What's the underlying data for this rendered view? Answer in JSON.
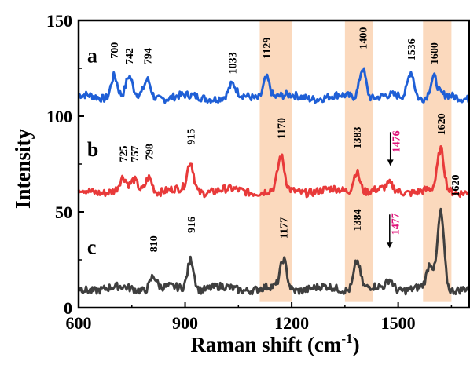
{
  "chart_data": {
    "type": "line",
    "xlabel": "Raman shift (cm",
    "xlabel_sup": "-1",
    "xlabel_close": ")",
    "ylabel": "Intensity",
    "xlim": [
      600,
      1700
    ],
    "ylim": [
      0,
      150
    ],
    "x_ticks": [
      600,
      900,
      1200,
      1500
    ],
    "y_ticks": [
      0,
      50,
      100,
      150
    ],
    "highlight_bands": [
      [
        1110,
        1200
      ],
      [
        1350,
        1430
      ],
      [
        1570,
        1650
      ]
    ],
    "highlight_color": "#fbd9bd",
    "series": [
      {
        "name": "a",
        "color": "#1f5fd6",
        "baseline": 110,
        "peaks": [
          [
            700,
            12
          ],
          [
            742,
            10
          ],
          [
            794,
            9
          ],
          [
            1033,
            6
          ],
          [
            1129,
            11
          ],
          [
            1400,
            16
          ],
          [
            1536,
            14
          ],
          [
            1600,
            10
          ]
        ],
        "labels": [
          {
            "text": "700",
            "x": 700,
            "y": 130
          },
          {
            "text": "742",
            "x": 742,
            "y": 127
          },
          {
            "text": "794",
            "x": 794,
            "y": 127
          },
          {
            "text": "1033",
            "x": 1033,
            "y": 122
          },
          {
            "text": "1129",
            "x": 1129,
            "y": 130
          },
          {
            "text": "1400",
            "x": 1400,
            "y": 135
          },
          {
            "text": "1536",
            "x": 1536,
            "y": 129
          },
          {
            "text": "1600",
            "x": 1600,
            "y": 127
          }
        ]
      },
      {
        "name": "b",
        "color": "#e83a3a",
        "baseline": 61,
        "peaks": [
          [
            725,
            6
          ],
          [
            757,
            5
          ],
          [
            798,
            8
          ],
          [
            915,
            15
          ],
          [
            1170,
            17
          ],
          [
            1383,
            11
          ],
          [
            1476,
            3
          ],
          [
            1620,
            21
          ]
        ],
        "labels": [
          {
            "text": "725",
            "x": 725,
            "y": 76,
            "color": "#000000"
          },
          {
            "text": "757",
            "x": 757,
            "y": 76,
            "color": "#000000"
          },
          {
            "text": "798",
            "x": 798,
            "y": 77,
            "color": "#000000"
          },
          {
            "text": "915",
            "x": 915,
            "y": 85,
            "color": "#000000"
          },
          {
            "text": "1170",
            "x": 1170,
            "y": 88,
            "color": "#000000"
          },
          {
            "text": "1383",
            "x": 1383,
            "y": 83,
            "color": "#000000"
          },
          {
            "text": "1476",
            "x": 1493,
            "y": 81,
            "color": "#e0137a",
            "arrow": true
          },
          {
            "text": "1620",
            "x": 1620,
            "y": 90,
            "color": "#000000"
          }
        ]
      },
      {
        "name": "c",
        "color": "#3f3f3f",
        "baseline": 10,
        "peaks": [
          [
            810,
            7
          ],
          [
            916,
            16
          ],
          [
            1177,
            15
          ],
          [
            1384,
            15
          ],
          [
            1477,
            5
          ],
          [
            1590,
            12
          ],
          [
            1620,
            40
          ]
        ],
        "labels": [
          {
            "text": "810",
            "x": 810,
            "y": 29,
            "color": "#000000"
          },
          {
            "text": "916",
            "x": 916,
            "y": 39,
            "color": "#000000"
          },
          {
            "text": "1177",
            "x": 1177,
            "y": 36,
            "color": "#000000"
          },
          {
            "text": "1384",
            "x": 1384,
            "y": 40,
            "color": "#000000"
          },
          {
            "text": "1477",
            "x": 1491,
            "y": 38,
            "color": "#e0137a",
            "arrow": true
          },
          {
            "text": "1620",
            "x": 1660,
            "y": 58,
            "color": "#000000"
          }
        ]
      }
    ]
  }
}
